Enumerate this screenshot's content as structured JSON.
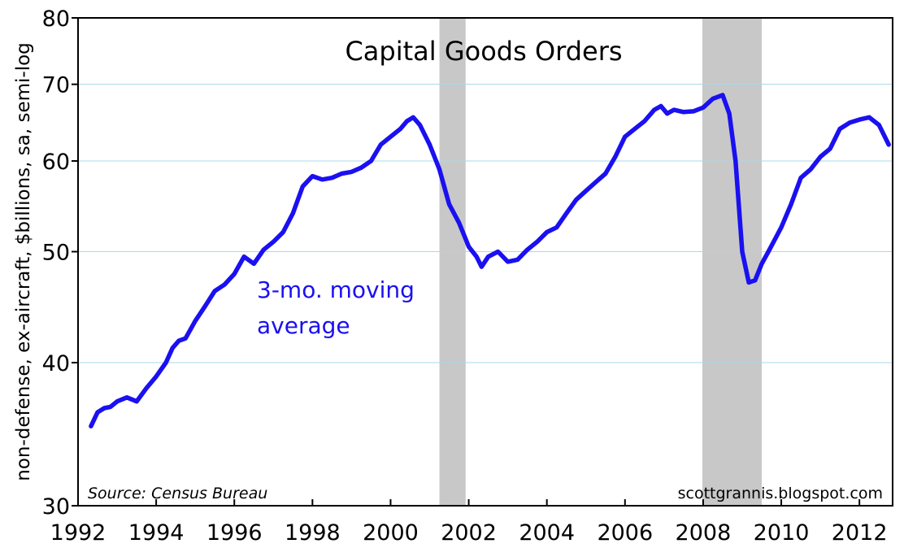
{
  "chart_data": {
    "type": "line",
    "title": "Capital Goods Orders",
    "ylabel": "non-defense, ex-aircraft, $billions, sa, semi-log",
    "annotation": [
      "3-mo. moving",
      "average"
    ],
    "source": "Source: Census Bureau",
    "credit": "scottgrannis.blogspot.com",
    "y_scale": "log",
    "ylim": [
      30,
      80
    ],
    "xlim": [
      1992,
      2012.85
    ],
    "y_ticks": [
      30,
      40,
      50,
      60,
      70,
      80
    ],
    "x_ticks": [
      1992,
      1994,
      1996,
      1998,
      2000,
      2002,
      2004,
      2006,
      2008,
      2010,
      2012
    ],
    "gridlines": true,
    "recessions": [
      [
        2001.25,
        2001.92
      ],
      [
        2007.98,
        2009.5
      ]
    ],
    "colors": {
      "line": "#1a10f0",
      "recession": "#c8c8c8",
      "grid": "#a8d8e8"
    },
    "series": [
      {
        "x": [
          1992.33,
          1992.5,
          1992.67,
          1992.83,
          1993.0,
          1993.25,
          1993.5,
          1993.75,
          1994.0,
          1994.25,
          1994.42,
          1994.58,
          1994.75,
          1995.0,
          1995.25,
          1995.5,
          1995.75,
          1996.0,
          1996.25,
          1996.5,
          1996.75,
          1997.0,
          1997.25,
          1997.5,
          1997.75,
          1998.0,
          1998.25,
          1998.5,
          1998.75,
          1999.0,
          1999.25,
          1999.5,
          1999.75,
          2000.0,
          2000.25,
          2000.42,
          2000.58,
          2000.75,
          2001.0,
          2001.25,
          2001.5,
          2001.75,
          2002.0,
          2002.2,
          2002.33,
          2002.5,
          2002.75,
          2003.0,
          2003.25,
          2003.5,
          2003.75,
          2004.0,
          2004.25,
          2004.5,
          2004.75,
          2005.0,
          2005.25,
          2005.5,
          2005.75,
          2006.0,
          2006.25,
          2006.5,
          2006.75,
          2006.92,
          2007.08,
          2007.25,
          2007.5,
          2007.75,
          2008.0,
          2008.25,
          2008.5,
          2008.67,
          2008.83,
          2009.0,
          2009.17,
          2009.33,
          2009.5,
          2009.67,
          2009.83,
          2010.0,
          2010.25,
          2010.5,
          2010.75,
          2011.0,
          2011.25,
          2011.5,
          2011.75,
          2012.0,
          2012.25,
          2012.5,
          2012.75
        ],
        "values": [
          35.2,
          36.2,
          36.5,
          36.6,
          37.0,
          37.3,
          37.0,
          38.0,
          38.9,
          40.0,
          41.2,
          41.8,
          42.0,
          43.5,
          44.8,
          46.2,
          46.8,
          47.8,
          49.5,
          48.8,
          50.2,
          51.0,
          52.0,
          54.0,
          57.0,
          58.2,
          57.8,
          58.0,
          58.5,
          58.7,
          59.2,
          60.0,
          62.0,
          63.0,
          64.0,
          65.0,
          65.5,
          64.5,
          62.0,
          59.0,
          55.0,
          53.0,
          50.5,
          49.5,
          48.5,
          49.5,
          50.0,
          49.0,
          49.2,
          50.2,
          51.0,
          52.0,
          52.5,
          54.0,
          55.5,
          56.5,
          57.5,
          58.5,
          60.5,
          63.0,
          64.0,
          65.0,
          66.5,
          67.0,
          66.0,
          66.5,
          66.2,
          66.3,
          66.8,
          68.0,
          68.5,
          66.0,
          60.0,
          50.0,
          47.0,
          47.2,
          48.8,
          50.0,
          51.2,
          52.5,
          55.0,
          58.0,
          59.0,
          60.5,
          61.5,
          64.0,
          64.8,
          65.2,
          65.5,
          64.5,
          62.0
        ]
      }
    ]
  }
}
